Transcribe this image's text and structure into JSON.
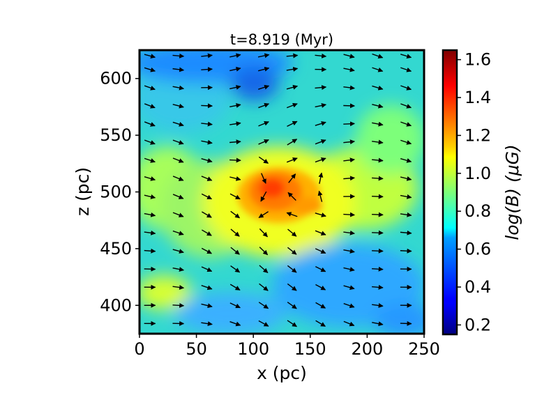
{
  "chart_data": {
    "type": "heatmap",
    "title": "t=8.919 (Myr)",
    "xlabel": "x (pc)",
    "ylabel": "z (pc)",
    "xlim": [
      0,
      250
    ],
    "ylim": [
      375,
      625
    ],
    "xticks": [
      0,
      50,
      100,
      150,
      200,
      250
    ],
    "yticks": [
      400,
      450,
      500,
      550,
      600
    ],
    "colorbar": {
      "label": "log(B) (μG)",
      "range": [
        0.15,
        1.65
      ],
      "ticks": [
        "0.2",
        "0.4",
        "0.6",
        "0.8",
        "1.0",
        "1.2",
        "1.4",
        "1.6"
      ],
      "colormap": "jet"
    },
    "field_summary": {
      "background_value": 0.75,
      "peak_value": 1.4,
      "peak_location": {
        "x": 125,
        "z": 505
      },
      "low_regions": [
        {
          "x": 100,
          "z": 598,
          "value": 0.45
        },
        {
          "x": 40,
          "z": 620,
          "value": 0.5
        },
        {
          "x": 200,
          "z": 410,
          "value": 0.55
        }
      ]
    },
    "vector_field": {
      "description": "magnetic field direction arrows",
      "grid_x": [
        9,
        34,
        59,
        84,
        109,
        134,
        159,
        184,
        209,
        234
      ],
      "grid_z": [
        384,
        400,
        416,
        432,
        448,
        464,
        480,
        496,
        512,
        528,
        544,
        560,
        576,
        592,
        608,
        620
      ]
    }
  }
}
